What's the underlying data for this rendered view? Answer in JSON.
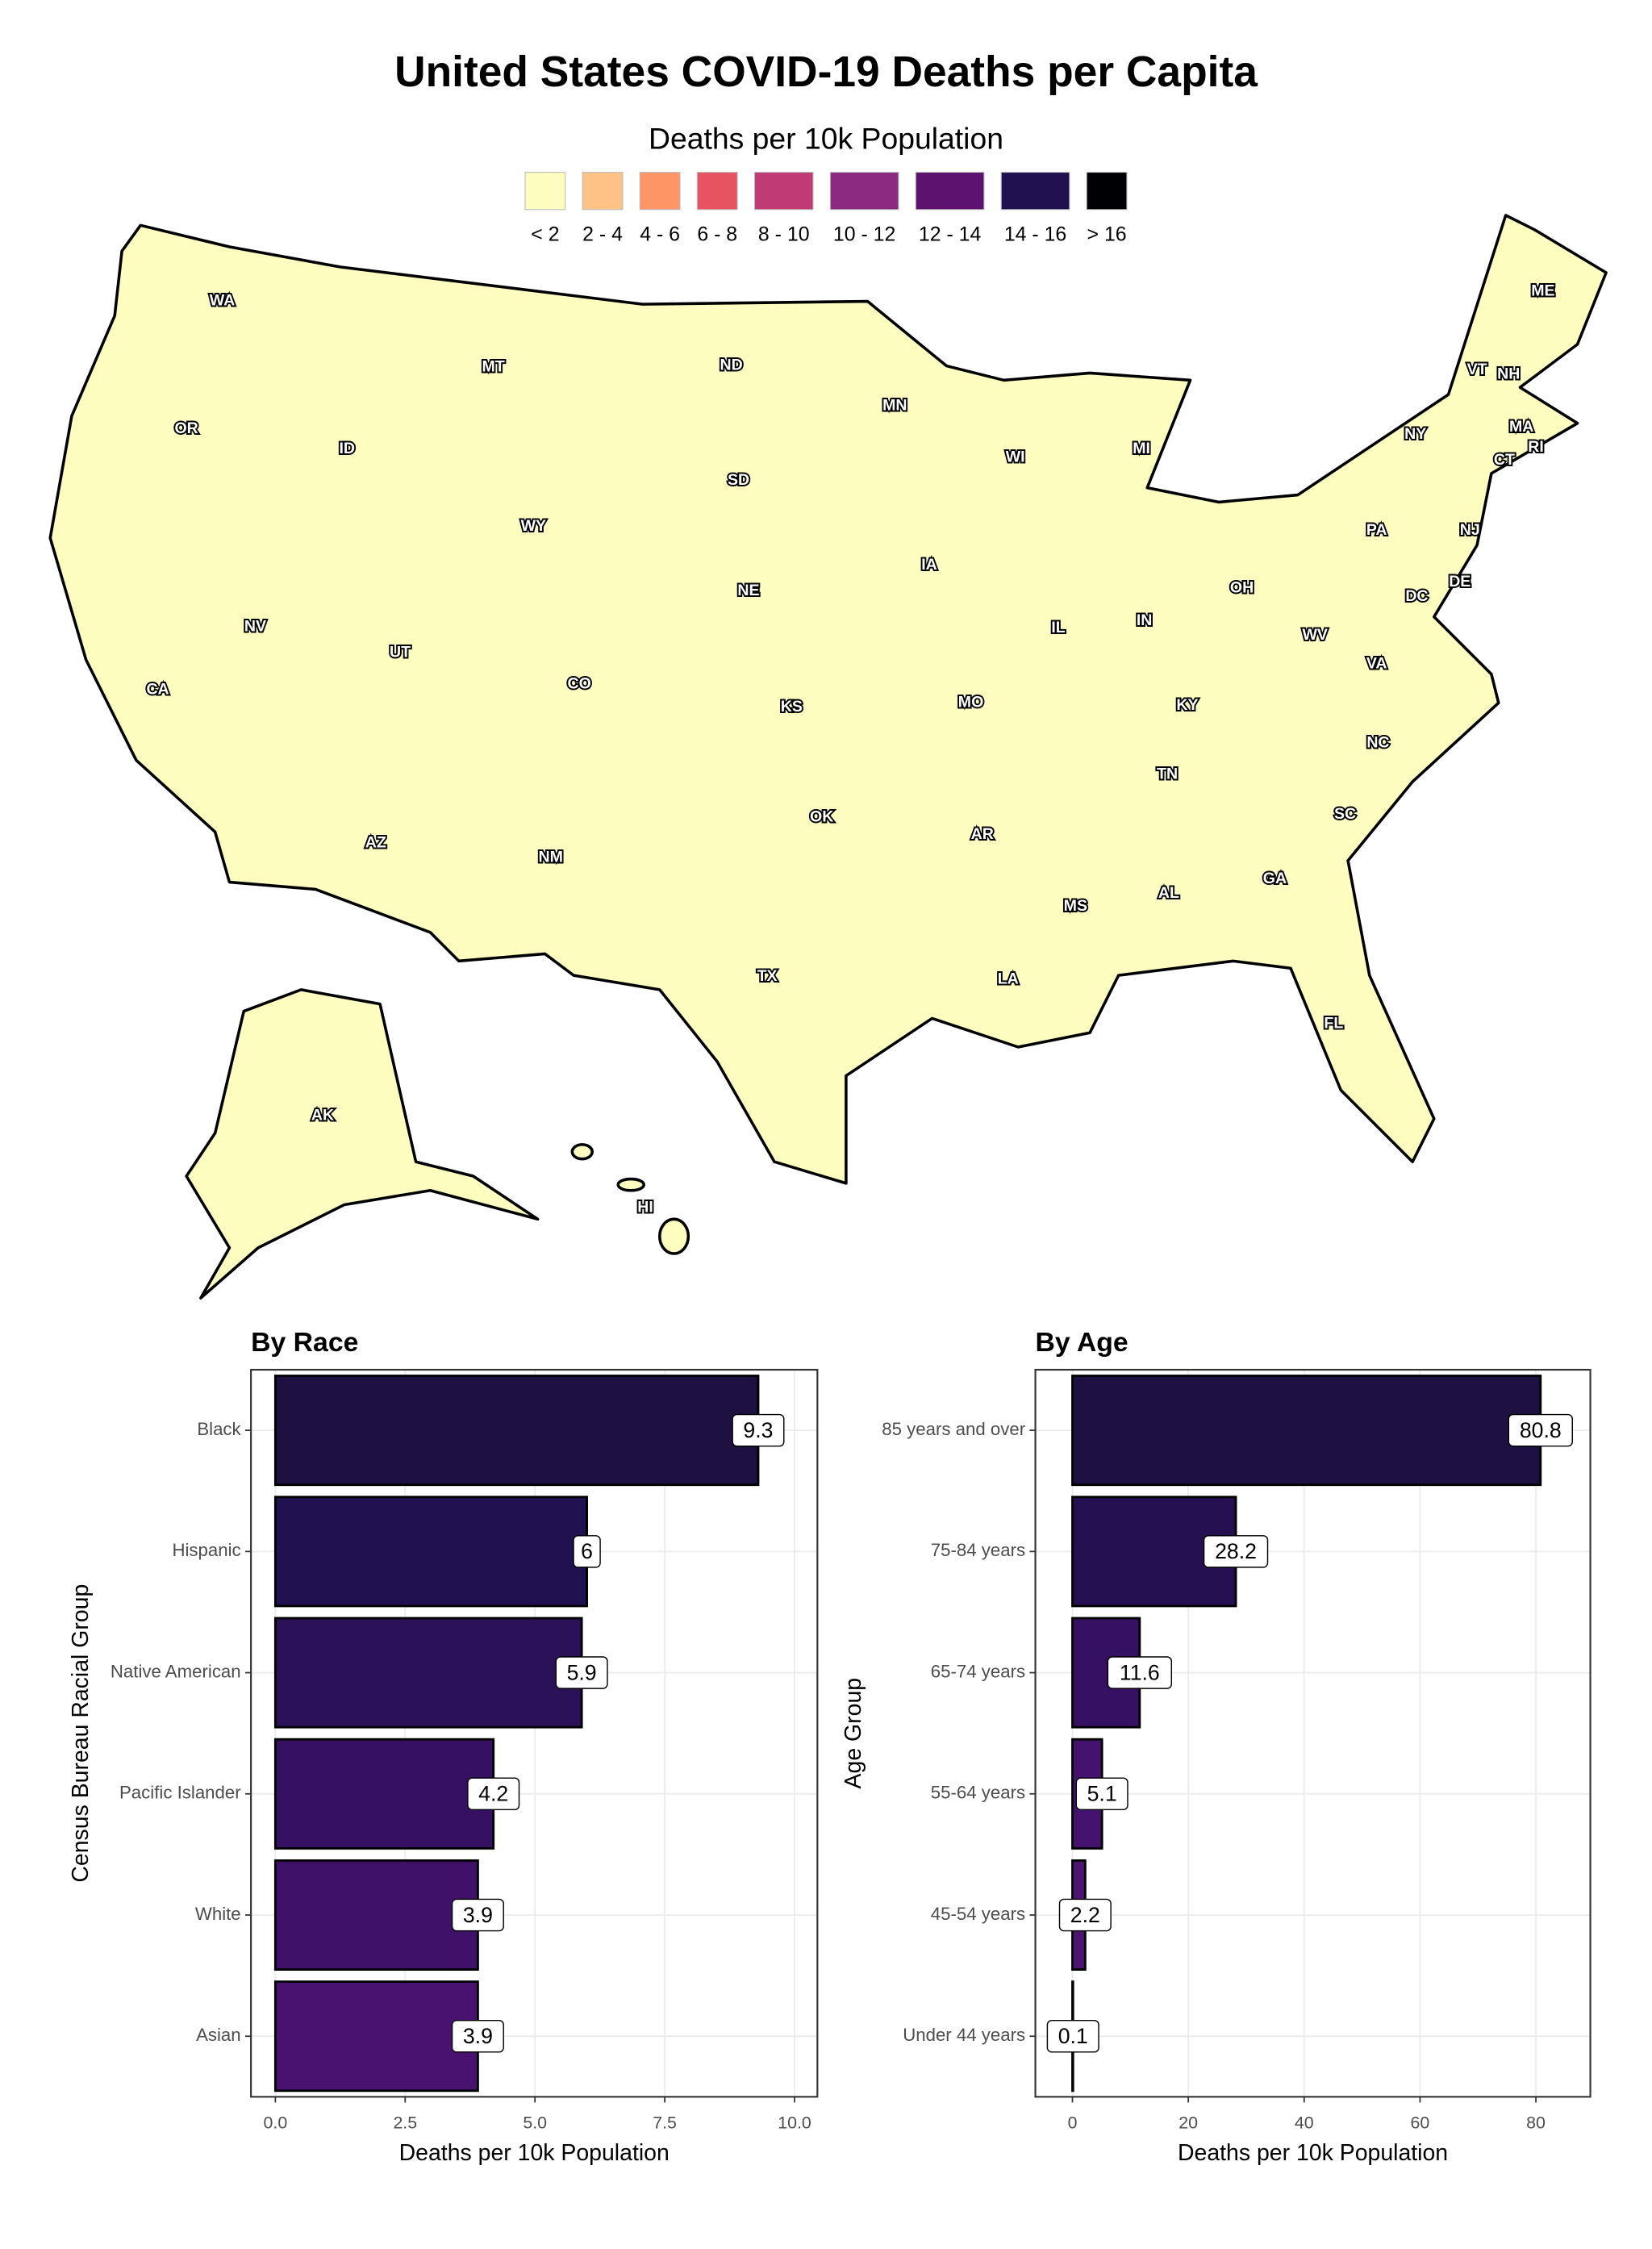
{
  "chart_data": [
    {
      "type": "map",
      "title": "United States COVID-19 Deaths per Capita",
      "legend": {
        "title": "Deaths per 10k Population",
        "labels": [
          "< 2",
          "2 - 4",
          "4 - 6",
          "6 - 8",
          "8 - 10",
          "10 - 12",
          "12 - 14",
          "14 - 16",
          "> 16"
        ],
        "colors": [
          "#fcfdbf",
          "#fec287",
          "#fd9567",
          "#e85362",
          "#c03a76",
          "#8c2981",
          "#5c126e",
          "#221150",
          "#000004"
        ]
      },
      "regions": [
        "WA",
        "OR",
        "CA",
        "NV",
        "ID",
        "MT",
        "WY",
        "UT",
        "AZ",
        "CO",
        "NM",
        "ND",
        "SD",
        "NE",
        "KS",
        "OK",
        "TX",
        "MN",
        "IA",
        "MO",
        "AR",
        "LA",
        "WI",
        "IL",
        "MI",
        "IN",
        "OH",
        "KY",
        "TN",
        "MS",
        "AL",
        "GA",
        "FL",
        "SC",
        "NC",
        "VA",
        "WV",
        "PA",
        "NY",
        "VT",
        "NH",
        "ME",
        "MA",
        "RI",
        "CT",
        "NJ",
        "DE",
        "DC",
        "AK",
        "HI"
      ]
    },
    {
      "type": "bar",
      "orientation": "horizontal",
      "title": "By Race",
      "ylabel": "Census Bureau Racial Group",
      "xlabel": "Deaths per 10k Population",
      "categories": [
        "Black",
        "Hispanic",
        "Native American",
        "Pacific Islander",
        "White",
        "Asian"
      ],
      "values": [
        9.3,
        6,
        5.9,
        4.2,
        3.9,
        3.9
      ],
      "colors": [
        "#1e1040",
        "#221150",
        "#2a1158",
        "#361163",
        "#3f1168",
        "#4a1270"
      ],
      "xlim": [
        -0.47,
        10.44
      ],
      "xticks": [
        {
          "value": 0,
          "label": "0.0"
        },
        2.5,
        {
          "value": 5,
          "label": "5.0"
        },
        7.5,
        {
          "value": 10,
          "label": "10.0"
        }
      ],
      "grid": true
    },
    {
      "type": "bar",
      "orientation": "horizontal",
      "title": "By Age",
      "ylabel": "Age Group",
      "xlabel": "Deaths per 10k Population",
      "categories": [
        "85 years and over",
        "75-84 years",
        "65-74 years",
        "55-64 years",
        "45-54 years",
        "Under 44 years"
      ],
      "values": [
        80.8,
        28.2,
        11.6,
        5.1,
        2.2,
        0.1
      ],
      "colors": [
        "#1e1040",
        "#251152",
        "#361163",
        "#451270",
        "#4e1474",
        "#5a167a"
      ],
      "xlim": [
        -6.4,
        89.4
      ],
      "xticks": [
        0,
        20,
        40,
        60,
        80
      ],
      "grid": true
    }
  ]
}
